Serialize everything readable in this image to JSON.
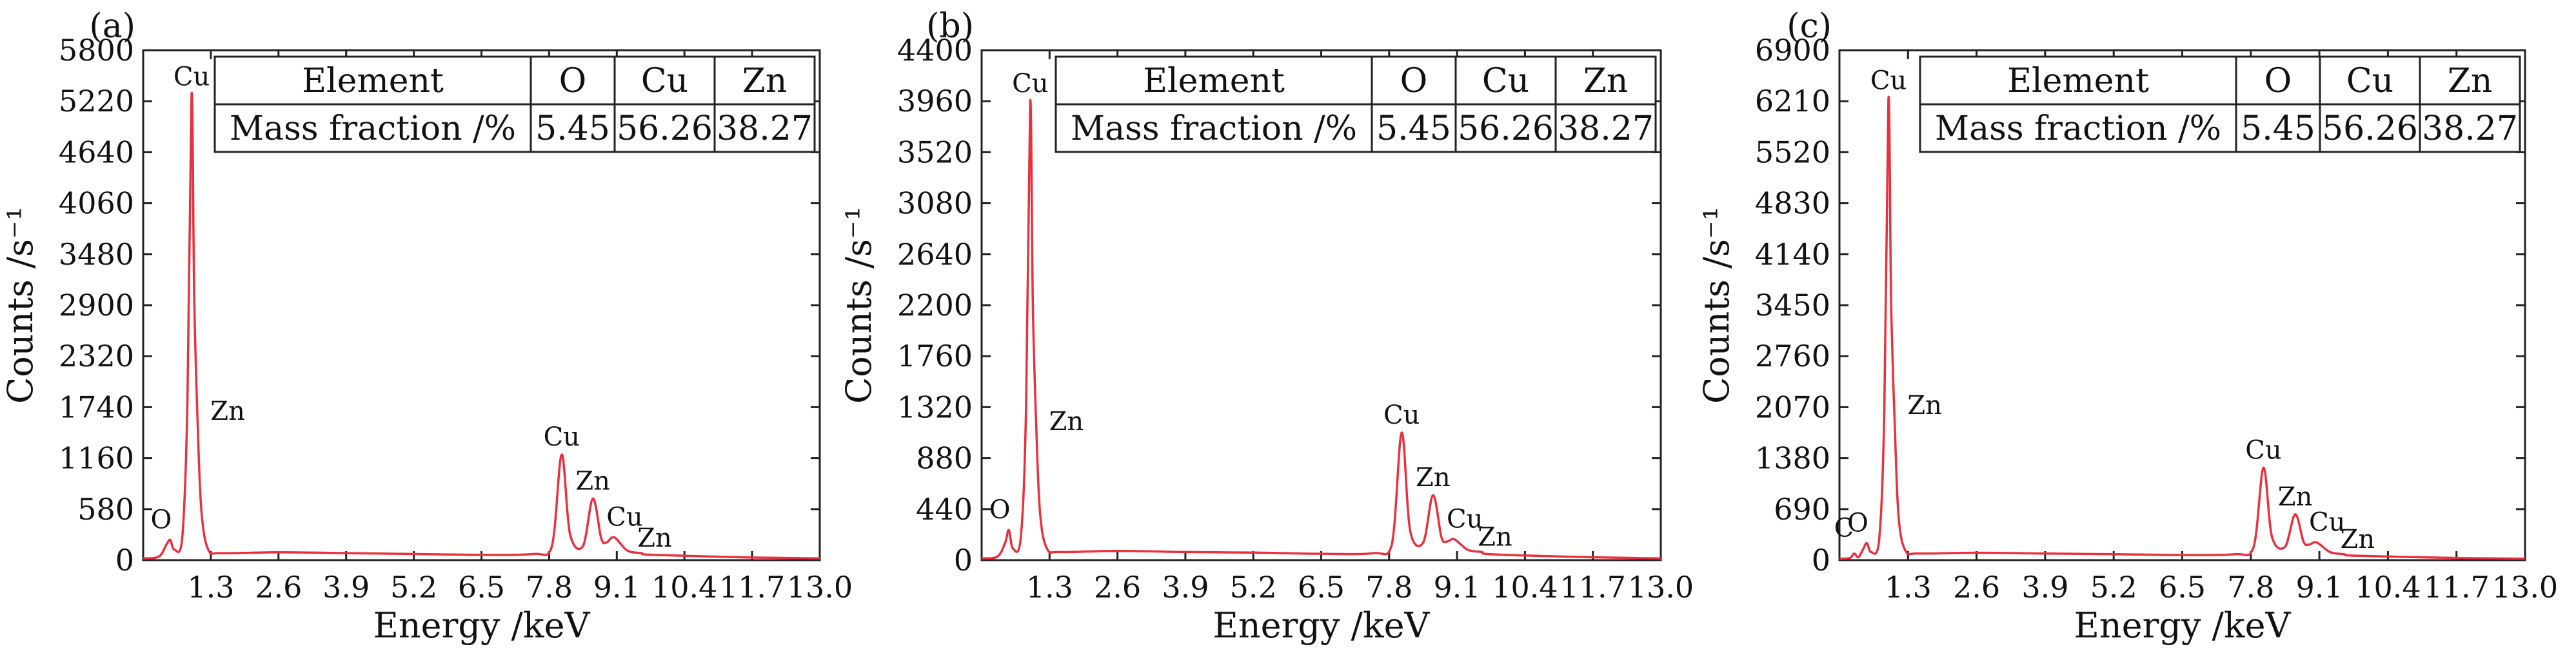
{
  "chart_data": [
    {
      "panel": "(a)",
      "type": "line",
      "xlabel": "Energy /keV",
      "ylabel": "Counts /s⁻¹",
      "xlim": [
        0,
        13.0
      ],
      "ylim": [
        0,
        5800
      ],
      "xticks": [
        "1.3",
        "2.6",
        "3.9",
        "5.2",
        "6.5",
        "7.8",
        "9.1",
        "10.4",
        "11.7",
        "13.0"
      ],
      "yticks": [
        "0",
        "580",
        "1160",
        "1740",
        "2320",
        "2900",
        "3480",
        "4060",
        "4640",
        "5220",
        "5800"
      ],
      "line_color": "#e8313f",
      "series": [
        {
          "x": [
            0.0,
            0.3,
            0.45,
            0.52,
            0.6,
            0.75,
            0.85,
            0.93,
            0.98,
            1.05,
            1.12,
            1.25,
            1.5,
            2.6,
            3.9,
            5.2,
            6.5,
            7.5,
            7.85,
            8.04,
            8.2,
            8.45,
            8.64,
            8.8,
            8.9,
            9.05,
            9.3,
            9.57,
            9.8,
            11.7,
            13.0
          ],
          "y": [
            20,
            40,
            180,
            230,
            120,
            250,
            1800,
            5300,
            3000,
            1500,
            550,
            120,
            80,
            90,
            80,
            70,
            60,
            70,
            150,
            1200,
            300,
            160,
            700,
            250,
            200,
            260,
            110,
            80,
            60,
            30,
            20
          ]
        }
      ],
      "peak_labels": [
        {
          "text": "O",
          "x": 0.52,
          "y": 230
        },
        {
          "text": "Cu",
          "x": 0.93,
          "y": 5300
        },
        {
          "text": "Zn",
          "x": 1.02,
          "y": 1700
        },
        {
          "text": "Cu",
          "x": 8.04,
          "y": 1200
        },
        {
          "text": "Zn",
          "x": 8.64,
          "y": 700
        },
        {
          "text": "Cu",
          "x": 9.05,
          "y": 260
        },
        {
          "text": "Zn",
          "x": 9.57,
          "y": 80
        }
      ],
      "table": {
        "headers": [
          "Element",
          "O",
          "Cu",
          "Zn"
        ],
        "row": [
          "Mass fraction /%",
          "5.45",
          "56.26",
          "38.27"
        ]
      }
    },
    {
      "panel": "(b)",
      "type": "line",
      "xlabel": "Energy /keV",
      "ylabel": "Counts /s⁻¹",
      "xlim": [
        0,
        13.0
      ],
      "ylim": [
        0,
        4400
      ],
      "xticks": [
        "1.3",
        "2.6",
        "3.9",
        "5.2",
        "6.5",
        "7.8",
        "9.1",
        "10.4",
        "11.7",
        "13.0"
      ],
      "yticks": [
        "0",
        "440",
        "880",
        "1320",
        "1760",
        "2200",
        "2640",
        "3080",
        "3520",
        "3960",
        "4400"
      ],
      "line_color": "#e8313f",
      "series": [
        {
          "x": [
            0.0,
            0.3,
            0.45,
            0.52,
            0.6,
            0.75,
            0.85,
            0.93,
            0.98,
            1.05,
            1.12,
            1.25,
            1.5,
            2.6,
            3.9,
            5.2,
            6.5,
            7.5,
            7.85,
            8.04,
            8.2,
            8.45,
            8.64,
            8.8,
            8.9,
            9.05,
            9.3,
            9.57,
            9.8,
            11.7,
            13.0
          ],
          "y": [
            15,
            30,
            150,
            260,
            100,
            200,
            1300,
            3960,
            2200,
            1100,
            400,
            100,
            70,
            80,
            70,
            65,
            55,
            60,
            130,
            1100,
            260,
            150,
            560,
            200,
            160,
            180,
            90,
            70,
            50,
            25,
            15
          ]
        }
      ],
      "peak_labels": [
        {
          "text": "O",
          "x": 0.52,
          "y": 260
        },
        {
          "text": "Cu",
          "x": 0.93,
          "y": 3960
        },
        {
          "text": "Zn",
          "x": 1.02,
          "y": 1200
        },
        {
          "text": "Cu",
          "x": 8.04,
          "y": 1100
        },
        {
          "text": "Zn",
          "x": 8.64,
          "y": 560
        },
        {
          "text": "Cu",
          "x": 9.05,
          "y": 180
        },
        {
          "text": "Zn",
          "x": 9.57,
          "y": 70
        }
      ],
      "table": {
        "headers": [
          "Element",
          "O",
          "Cu",
          "Zn"
        ],
        "row": [
          "Mass fraction /%",
          "5.45",
          "56.26",
          "38.27"
        ]
      }
    },
    {
      "panel": "(c)",
      "type": "line",
      "xlabel": "Energy /keV",
      "ylabel": "Counts /s⁻¹",
      "xlim": [
        0,
        13.0
      ],
      "ylim": [
        0,
        6900
      ],
      "xticks": [
        "1.3",
        "2.6",
        "3.9",
        "5.2",
        "6.5",
        "7.8",
        "9.1",
        "10.4",
        "11.7",
        "13.0"
      ],
      "yticks": [
        "0",
        "690",
        "1380",
        "2070",
        "2760",
        "3450",
        "4140",
        "4830",
        "5520",
        "6210",
        "6900"
      ],
      "line_color": "#e8313f",
      "series": [
        {
          "x": [
            0.0,
            0.2,
            0.28,
            0.36,
            0.45,
            0.52,
            0.6,
            0.75,
            0.85,
            0.93,
            0.98,
            1.05,
            1.12,
            1.25,
            1.5,
            2.6,
            3.9,
            5.2,
            6.5,
            7.5,
            7.85,
            8.04,
            8.2,
            8.45,
            8.64,
            8.8,
            8.9,
            9.05,
            9.3,
            9.57,
            9.8,
            11.7,
            13.0
          ],
          "y": [
            20,
            30,
            90,
            40,
            150,
            230,
            110,
            250,
            2000,
            6250,
            3500,
            1800,
            600,
            130,
            90,
            100,
            90,
            80,
            70,
            80,
            170,
            1250,
            320,
            180,
            620,
            250,
            210,
            240,
            110,
            80,
            60,
            30,
            20
          ]
        }
      ],
      "peak_labels": [
        {
          "text": "C",
          "x": 0.28,
          "y": 90
        },
        {
          "text": "O",
          "x": 0.52,
          "y": 230
        },
        {
          "text": "Cu",
          "x": 0.93,
          "y": 6250
        },
        {
          "text": "Zn",
          "x": 1.02,
          "y": 2100
        },
        {
          "text": "Cu",
          "x": 8.04,
          "y": 1250
        },
        {
          "text": "Zn",
          "x": 8.64,
          "y": 620
        },
        {
          "text": "Cu",
          "x": 9.05,
          "y": 240
        },
        {
          "text": "Zn",
          "x": 9.57,
          "y": 80
        }
      ],
      "table": {
        "headers": [
          "Element",
          "O",
          "Cu",
          "Zn"
        ],
        "row": [
          "Mass fraction /%",
          "5.45",
          "56.26",
          "38.27"
        ]
      }
    }
  ]
}
